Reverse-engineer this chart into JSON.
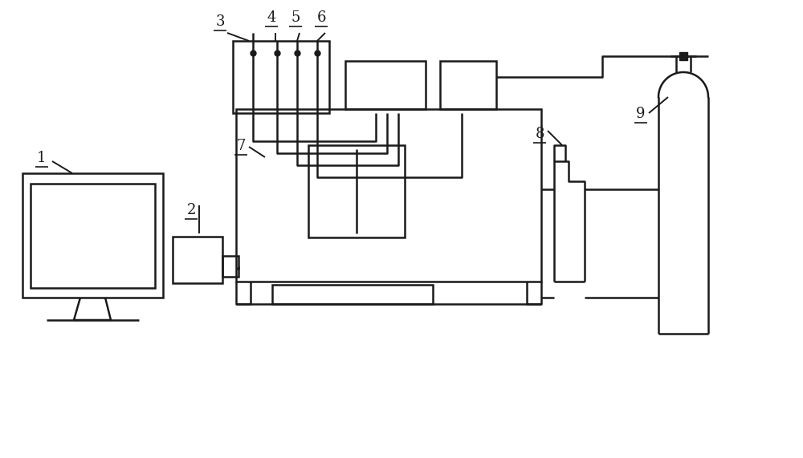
{
  "bg_color": "#ffffff",
  "line_color": "#1a1a1a",
  "lw": 1.8,
  "lw_thin": 1.4
}
